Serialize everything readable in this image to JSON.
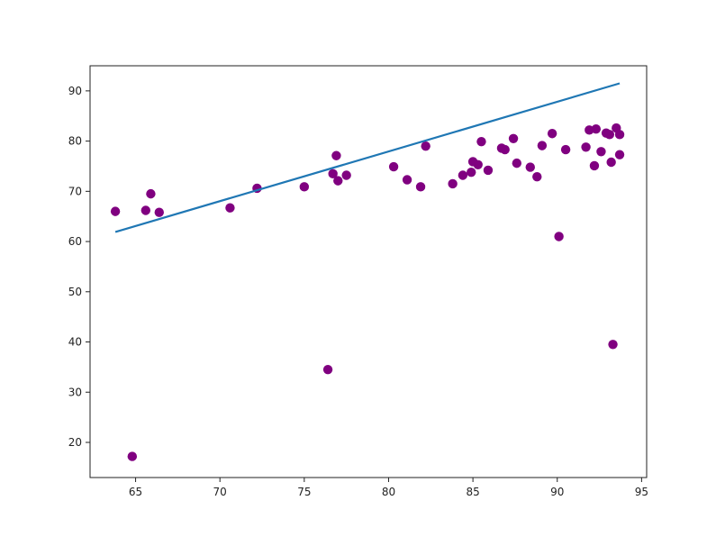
{
  "chart_data": {
    "type": "scatter",
    "title": "",
    "xlabel": "",
    "ylabel": "",
    "xlim": [
      62.3,
      95.3
    ],
    "ylim": [
      13,
      95
    ],
    "grid": false,
    "x_ticks": [
      65,
      70,
      75,
      80,
      85,
      90,
      95
    ],
    "y_ticks": [
      20,
      30,
      40,
      50,
      60,
      70,
      80,
      90
    ],
    "x_tick_labels": [
      "65",
      "70",
      "75",
      "80",
      "85",
      "90",
      "95"
    ],
    "y_tick_labels": [
      "20",
      "30",
      "40",
      "50",
      "60",
      "70",
      "80",
      "90"
    ],
    "series": [
      {
        "kind": "scatter",
        "color": "#800080",
        "points": [
          [
            63.8,
            66.0
          ],
          [
            64.8,
            17.2
          ],
          [
            65.6,
            66.2
          ],
          [
            65.9,
            69.5
          ],
          [
            66.4,
            65.8
          ],
          [
            70.6,
            66.7
          ],
          [
            72.2,
            70.6
          ],
          [
            75.0,
            70.9
          ],
          [
            76.4,
            34.5
          ],
          [
            76.7,
            73.5
          ],
          [
            76.9,
            77.1
          ],
          [
            77.0,
            72.1
          ],
          [
            77.5,
            73.2
          ],
          [
            80.3,
            74.9
          ],
          [
            81.1,
            72.3
          ],
          [
            81.9,
            70.9
          ],
          [
            82.2,
            79.0
          ],
          [
            83.8,
            71.5
          ],
          [
            84.4,
            73.2
          ],
          [
            84.9,
            73.8
          ],
          [
            85.0,
            75.9
          ],
          [
            85.3,
            75.3
          ],
          [
            85.5,
            79.9
          ],
          [
            85.9,
            74.2
          ],
          [
            86.7,
            78.6
          ],
          [
            86.9,
            78.3
          ],
          [
            87.4,
            80.5
          ],
          [
            87.6,
            75.6
          ],
          [
            88.4,
            74.8
          ],
          [
            88.8,
            72.9
          ],
          [
            89.1,
            79.1
          ],
          [
            89.7,
            81.5
          ],
          [
            90.1,
            61.0
          ],
          [
            90.5,
            78.3
          ],
          [
            91.7,
            78.8
          ],
          [
            91.9,
            82.2
          ],
          [
            92.3,
            82.4
          ],
          [
            92.2,
            75.1
          ],
          [
            92.6,
            77.9
          ],
          [
            92.9,
            81.6
          ],
          [
            93.1,
            81.3
          ],
          [
            93.2,
            75.8
          ],
          [
            93.3,
            39.5
          ],
          [
            93.5,
            82.6
          ],
          [
            93.7,
            81.3
          ],
          [
            93.7,
            77.3
          ]
        ]
      },
      {
        "kind": "line",
        "color": "#1f77b4",
        "points": [
          [
            63.8,
            61.9
          ],
          [
            93.7,
            91.5
          ]
        ]
      }
    ]
  }
}
